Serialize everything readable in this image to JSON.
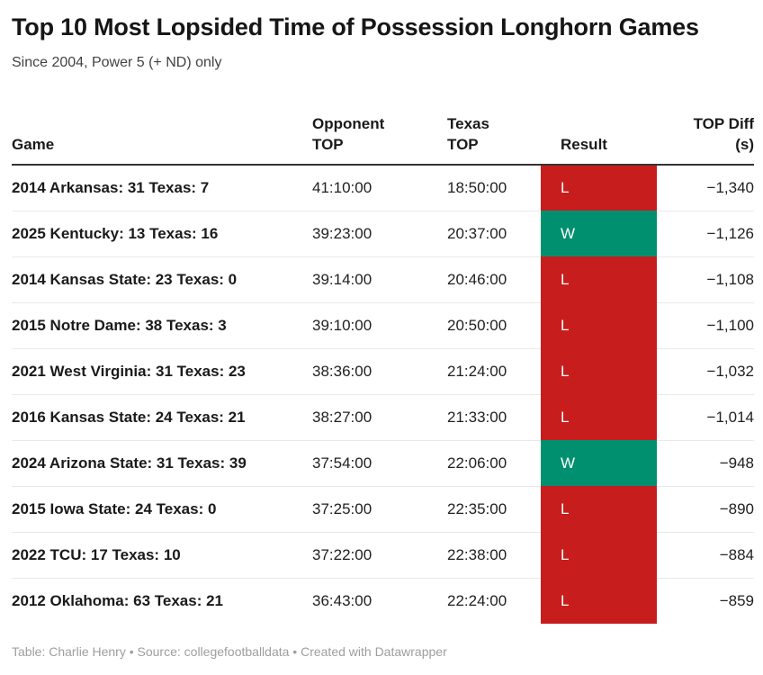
{
  "header": {
    "title": "Top 10 Most Lopsided Time of Possession Longhorn Games",
    "subtitle": "Since 2004, Power 5 (+ ND) only"
  },
  "table_header": {
    "col_game": "Game",
    "col_opponent": "Opponent\nTOP",
    "col_texas": "Texas\nTOP",
    "col_result": "Result",
    "col_diff": "TOP Diff\n(s)"
  },
  "chart_data": {
    "type": "table",
    "title": "Top 10 Most Lopsided Time of Possession Longhorn Games",
    "subtitle": "Since 2004, Power 5 (+ ND) only",
    "columns": [
      "Game",
      "Opponent TOP",
      "Texas TOP",
      "Result",
      "TOP Diff (s)"
    ],
    "rows": [
      {
        "game": "2014 Arkansas: 31 Texas: 7",
        "opponent_top": "41:10:00",
        "texas_top": "18:50:00",
        "result": "L",
        "top_diff": "−1,340"
      },
      {
        "game": "2025 Kentucky: 13 Texas: 16",
        "opponent_top": "39:23:00",
        "texas_top": "20:37:00",
        "result": "W",
        "top_diff": "−1,126"
      },
      {
        "game": "2014 Kansas State: 23 Texas: 0",
        "opponent_top": "39:14:00",
        "texas_top": "20:46:00",
        "result": "L",
        "top_diff": "−1,108"
      },
      {
        "game": "2015 Notre Dame: 38 Texas: 3",
        "opponent_top": "39:10:00",
        "texas_top": "20:50:00",
        "result": "L",
        "top_diff": "−1,100"
      },
      {
        "game": "2021 West Virginia: 31 Texas: 23",
        "opponent_top": "38:36:00",
        "texas_top": "21:24:00",
        "result": "L",
        "top_diff": "−1,032"
      },
      {
        "game": "2016 Kansas State: 24 Texas: 21",
        "opponent_top": "38:27:00",
        "texas_top": "21:33:00",
        "result": "L",
        "top_diff": "−1,014"
      },
      {
        "game": "2024 Arizona State: 31 Texas: 39",
        "opponent_top": "37:54:00",
        "texas_top": "22:06:00",
        "result": "W",
        "top_diff": "−948"
      },
      {
        "game": "2015 Iowa State: 24 Texas: 0",
        "opponent_top": "37:25:00",
        "texas_top": "22:35:00",
        "result": "L",
        "top_diff": "−890"
      },
      {
        "game": "2022 TCU: 17 Texas: 10",
        "opponent_top": "37:22:00",
        "texas_top": "22:38:00",
        "result": "L",
        "top_diff": "−884"
      },
      {
        "game": "2012 Oklahoma: 63 Texas: 21",
        "opponent_top": "36:43:00",
        "texas_top": "22:24:00",
        "result": "L",
        "top_diff": "−859"
      }
    ]
  },
  "colors": {
    "loss": "#c71e1d",
    "win": "#009070",
    "header_border": "#333333",
    "row_border": "#e9e9e9"
  },
  "footer": {
    "text": "Table: Charlie Henry • Source: collegefootballdata • Created with Datawrapper"
  }
}
